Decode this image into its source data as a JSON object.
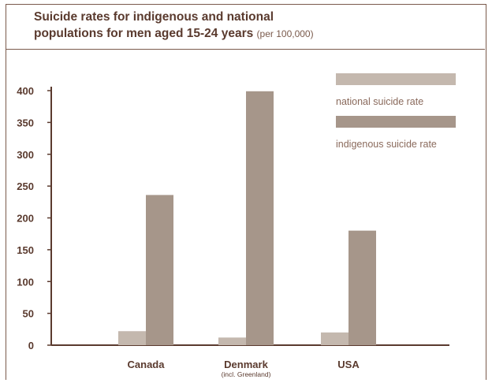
{
  "title": {
    "line1": "Suicide rates for indigenous and national",
    "line2": "populations for men aged 15-24 years",
    "unit": "(per 100,000)"
  },
  "colors": {
    "national": "#c4b8ae",
    "indigenous": "#a6968a",
    "axis": "#5a3a2e"
  },
  "chart_data": {
    "type": "bar",
    "categories": [
      "Canada",
      "Denmark",
      "USA"
    ],
    "category_sublabels": [
      "",
      "(incl. Greenland)",
      ""
    ],
    "series": [
      {
        "name": "national suicide rate",
        "values": [
          22,
          12,
          20
        ]
      },
      {
        "name": "indigenous suicide rate",
        "values": [
          236,
          399,
          180
        ]
      }
    ],
    "yticks": [
      0,
      50,
      100,
      150,
      200,
      250,
      300,
      350,
      400
    ],
    "ylim": [
      0,
      400
    ],
    "legend": "top-right",
    "grid": false
  }
}
